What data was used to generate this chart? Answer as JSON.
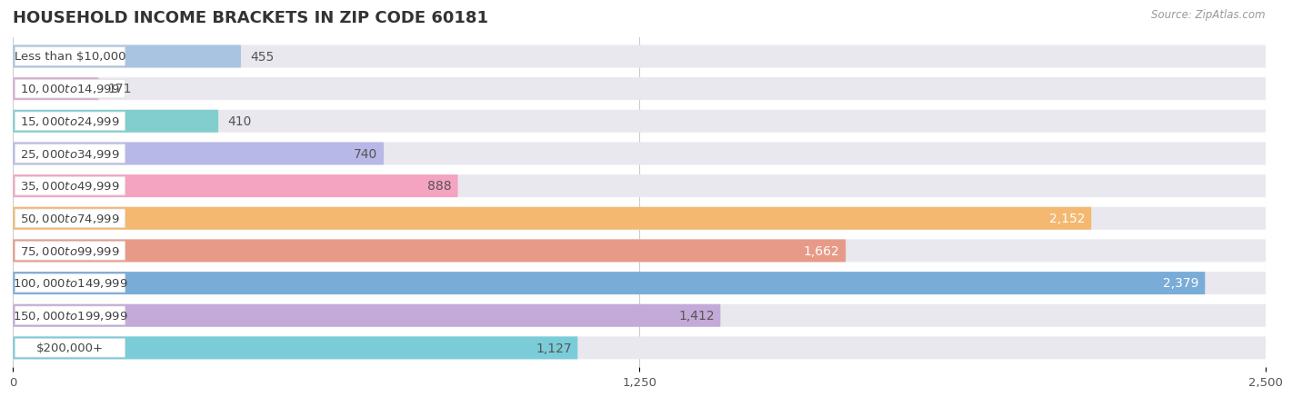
{
  "title": "HOUSEHOLD INCOME BRACKETS IN ZIP CODE 60181",
  "source": "Source: ZipAtlas.com",
  "categories": [
    "Less than $10,000",
    "$10,000 to $14,999",
    "$15,000 to $24,999",
    "$25,000 to $34,999",
    "$35,000 to $49,999",
    "$50,000 to $74,999",
    "$75,000 to $99,999",
    "$100,000 to $149,999",
    "$150,000 to $199,999",
    "$200,000+"
  ],
  "values": [
    455,
    171,
    410,
    740,
    888,
    2152,
    1662,
    2379,
    1412,
    1127
  ],
  "bar_colors": [
    "#a8c4e0",
    "#d4aed0",
    "#82cece",
    "#b8b8e8",
    "#f4a4c0",
    "#f4b870",
    "#e89a88",
    "#7aacd8",
    "#c4aad8",
    "#7accd8"
  ],
  "value_label_colors": [
    "#555555",
    "#555555",
    "#555555",
    "#555555",
    "#555555",
    "#ffffff",
    "#ffffff",
    "#ffffff",
    "#555555",
    "#555555"
  ],
  "xlim": [
    0,
    2500
  ],
  "xticks": [
    0,
    1250,
    2500
  ],
  "xtick_labels": [
    "0",
    "1,250",
    "2,500"
  ],
  "background_color": "#ffffff",
  "bar_bg_color": "#e8e8ee",
  "title_fontsize": 13,
  "bar_label_fontsize": 10,
  "category_fontsize": 9.5,
  "bar_height": 0.7,
  "label_pill_color": "#ffffff",
  "label_text_color": "#444444",
  "grid_color": "#cccccc"
}
